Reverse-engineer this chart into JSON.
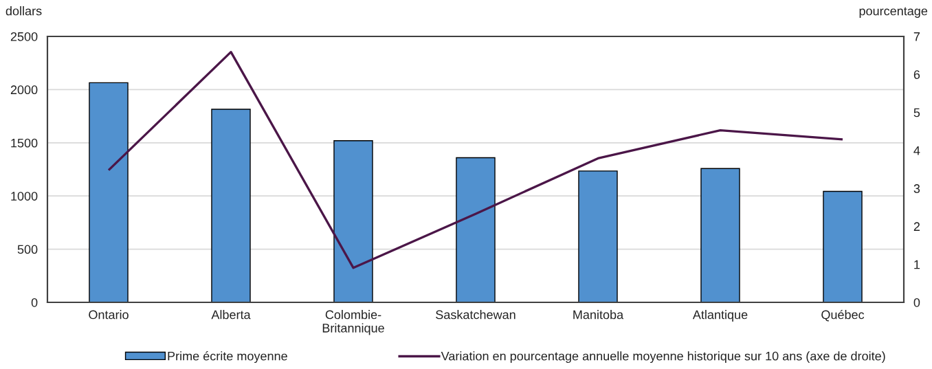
{
  "chart_data": {
    "type": "bar",
    "categories": [
      "Ontario",
      "Alberta",
      "Colombie-\nBritannique",
      "Saskatchewan",
      "Manitoba",
      "Atlantique",
      "Québec"
    ],
    "ylabel": "dollars",
    "y2label": "pourcentage",
    "ylim": [
      0,
      2500
    ],
    "yticks": [
      0,
      500,
      1000,
      1500,
      2000,
      2500
    ],
    "y2lim": [
      0,
      7
    ],
    "y2ticks": [
      0,
      1,
      2,
      3,
      4,
      5,
      6,
      7
    ],
    "grid": "y",
    "legend": "bottom",
    "series": [
      {
        "name": "Prime écrite moyenne",
        "color": "#5191cf",
        "values": [
          2065,
          1815,
          1520,
          1360,
          1235,
          1258,
          1043
        ]
      },
      {
        "name": "Variation en pourcentage annuelle moyenne historique sur 10 ans (axe de droite)",
        "type": "line",
        "axis": "y2",
        "color": "#4b1648",
        "values": [
          3.48,
          6.59,
          0.91,
          2.33,
          3.79,
          4.53,
          4.29
        ]
      }
    ]
  }
}
